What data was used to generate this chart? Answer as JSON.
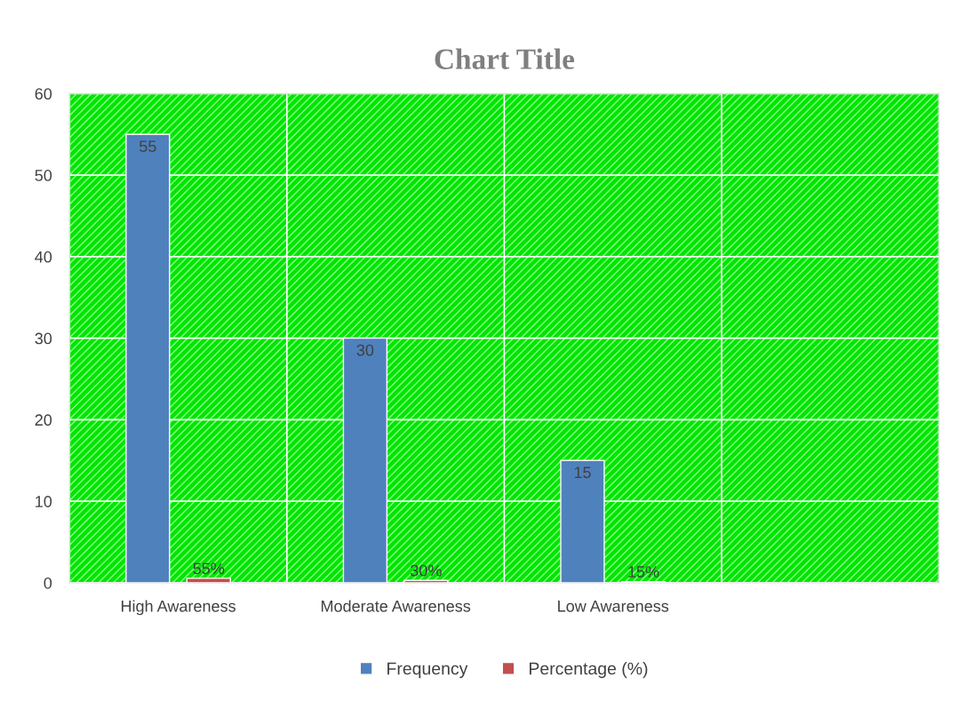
{
  "chart_data": {
    "type": "bar",
    "title": "Chart Title",
    "categories": [
      "High Awareness",
      "Moderate Awareness",
      "Low Awareness",
      null
    ],
    "series": [
      {
        "name": "Frequency",
        "color": "#4f81bd",
        "values": [
          55,
          30,
          15,
          null
        ],
        "value_labels": [
          "55",
          "30",
          "15",
          null
        ]
      },
      {
        "name": "Percentage (%)",
        "color": "#c0504d",
        "values": [
          0.55,
          0.3,
          0.15,
          null
        ],
        "value_labels": [
          "55%",
          "30%",
          "15%",
          null
        ]
      }
    ],
    "ylim": [
      0,
      60
    ],
    "yticks": [
      0,
      10,
      20,
      30,
      40,
      50,
      60
    ],
    "grid": true,
    "legend": "bottom"
  }
}
